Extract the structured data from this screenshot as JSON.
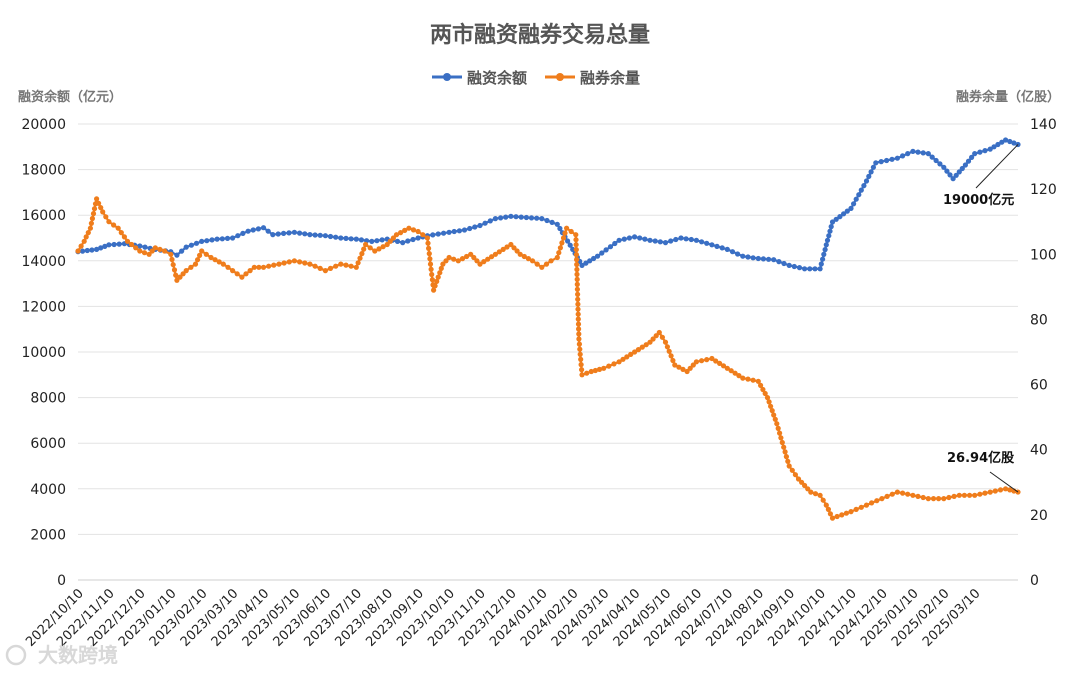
{
  "chart_data": {
    "type": "line",
    "title": "两市融资融券交易总量",
    "y_left_label": "融资余额（亿元）",
    "y_right_label": "融券余量（亿股）",
    "y_left_ticks": [
      "0",
      "2000",
      "4000",
      "6000",
      "8000",
      "10000",
      "12000",
      "14000",
      "16000",
      "18000",
      "20000"
    ],
    "y_right_ticks": [
      "0",
      "20",
      "40",
      "60",
      "80",
      "100",
      "120",
      "140"
    ],
    "ylim_left": [
      0,
      20000
    ],
    "ylim_right": [
      0,
      140
    ],
    "x_ticks": [
      "2022/10/10",
      "2022/11/10",
      "2022/12/10",
      "2023/01/10",
      "2023/02/10",
      "2023/03/10",
      "2023/04/10",
      "2023/05/10",
      "2023/06/10",
      "2023/07/10",
      "2023/08/10",
      "2023/09/10",
      "2023/10/10",
      "2023/11/10",
      "2023/12/10",
      "2024/01/10",
      "2024/02/10",
      "2024/03/10",
      "2024/04/10",
      "2024/05/10",
      "2024/06/10",
      "2024/07/10",
      "2024/08/10",
      "2024/09/10",
      "2024/10/10",
      "2024/11/10",
      "2024/12/10",
      "2025/01/10",
      "2025/02/10",
      "2025/03/10"
    ],
    "grid": true,
    "legend_position": "top",
    "series": [
      {
        "name": "融资余额",
        "color": "#3a6fc4",
        "axis": "left",
        "points": [
          [
            0,
            14400
          ],
          [
            0.3,
            14450
          ],
          [
            0.6,
            14500
          ],
          [
            1,
            14700
          ],
          [
            1.5,
            14750
          ],
          [
            2,
            14650
          ],
          [
            2.5,
            14500
          ],
          [
            3,
            14400
          ],
          [
            3.2,
            14250
          ],
          [
            3.5,
            14600
          ],
          [
            4,
            14850
          ],
          [
            4.5,
            14950
          ],
          [
            5,
            15000
          ],
          [
            5.5,
            15300
          ],
          [
            6,
            15450
          ],
          [
            6.3,
            15150
          ],
          [
            7,
            15250
          ],
          [
            7.5,
            15150
          ],
          [
            8,
            15100
          ],
          [
            8.5,
            15000
          ],
          [
            9,
            14950
          ],
          [
            9.5,
            14850
          ],
          [
            10,
            14950
          ],
          [
            10.5,
            14800
          ],
          [
            11,
            15000
          ],
          [
            11.3,
            15100
          ],
          [
            12,
            15250
          ],
          [
            12.5,
            15350
          ],
          [
            13,
            15550
          ],
          [
            13.5,
            15850
          ],
          [
            14,
            15950
          ],
          [
            14.5,
            15900
          ],
          [
            15,
            15850
          ],
          [
            15.5,
            15600
          ],
          [
            16,
            14500
          ],
          [
            16.3,
            13800
          ],
          [
            16.8,
            14200
          ],
          [
            17.5,
            14900
          ],
          [
            18,
            15050
          ],
          [
            18.5,
            14900
          ],
          [
            19,
            14800
          ],
          [
            19.5,
            15000
          ],
          [
            20,
            14900
          ],
          [
            20.5,
            14700
          ],
          [
            21,
            14500
          ],
          [
            21.5,
            14200
          ],
          [
            22,
            14100
          ],
          [
            22.5,
            14050
          ],
          [
            23,
            13800
          ],
          [
            23.5,
            13650
          ],
          [
            24,
            13650
          ],
          [
            24.2,
            14700
          ],
          [
            24.4,
            15700
          ],
          [
            25,
            16300
          ],
          [
            25.5,
            17500
          ],
          [
            25.8,
            18300
          ],
          [
            26.5,
            18500
          ],
          [
            27,
            18800
          ],
          [
            27.5,
            18700
          ],
          [
            28,
            18100
          ],
          [
            28.3,
            17600
          ],
          [
            28.7,
            18200
          ],
          [
            29,
            18700
          ],
          [
            29.5,
            18900
          ],
          [
            30,
            19300
          ],
          [
            30.4,
            19100
          ]
        ]
      },
      {
        "name": "融券余量",
        "color": "#ef7d1c",
        "axis": "right",
        "points": [
          [
            0,
            101
          ],
          [
            0.2,
            104
          ],
          [
            0.4,
            108
          ],
          [
            0.6,
            117
          ],
          [
            0.8,
            113
          ],
          [
            1,
            110
          ],
          [
            1.3,
            108
          ],
          [
            1.6,
            104
          ],
          [
            2,
            101
          ],
          [
            2.3,
            100
          ],
          [
            2.5,
            102
          ],
          [
            2.8,
            101
          ],
          [
            3,
            100
          ],
          [
            3.2,
            92
          ],
          [
            3.5,
            95
          ],
          [
            3.8,
            97
          ],
          [
            4,
            101
          ],
          [
            4.3,
            99
          ],
          [
            4.7,
            97
          ],
          [
            5,
            95
          ],
          [
            5.3,
            93
          ],
          [
            5.7,
            96
          ],
          [
            6,
            96
          ],
          [
            6.5,
            97
          ],
          [
            7,
            98
          ],
          [
            7.5,
            97
          ],
          [
            8,
            95
          ],
          [
            8.5,
            97
          ],
          [
            9,
            96
          ],
          [
            9.3,
            103
          ],
          [
            9.6,
            101
          ],
          [
            10,
            103
          ],
          [
            10.3,
            106
          ],
          [
            10.7,
            108
          ],
          [
            11,
            107
          ],
          [
            11.3,
            105
          ],
          [
            11.5,
            89
          ],
          [
            11.8,
            97
          ],
          [
            12,
            99
          ],
          [
            12.3,
            98
          ],
          [
            12.7,
            100
          ],
          [
            13,
            97
          ],
          [
            13.5,
            100
          ],
          [
            14,
            103
          ],
          [
            14.3,
            100
          ],
          [
            14.7,
            98
          ],
          [
            15,
            96
          ],
          [
            15.3,
            98
          ],
          [
            15.5,
            99
          ],
          [
            15.8,
            108
          ],
          [
            16.1,
            106
          ],
          [
            16.2,
            74
          ],
          [
            16.3,
            63
          ],
          [
            16.6,
            64
          ],
          [
            17,
            65
          ],
          [
            17.5,
            67
          ],
          [
            18,
            70
          ],
          [
            18.5,
            73
          ],
          [
            18.8,
            76
          ],
          [
            19,
            73
          ],
          [
            19.3,
            66
          ],
          [
            19.7,
            64
          ],
          [
            20,
            67
          ],
          [
            20.5,
            68
          ],
          [
            21,
            65
          ],
          [
            21.5,
            62
          ],
          [
            22,
            61
          ],
          [
            22.3,
            56
          ],
          [
            22.6,
            48
          ],
          [
            23,
            35
          ],
          [
            23.3,
            31
          ],
          [
            23.7,
            27
          ],
          [
            24,
            26
          ],
          [
            24.2,
            23
          ],
          [
            24.4,
            19
          ],
          [
            24.7,
            20
          ],
          [
            25,
            21
          ],
          [
            25.5,
            23
          ],
          [
            26,
            25
          ],
          [
            26.5,
            27
          ],
          [
            27,
            26
          ],
          [
            27.5,
            25
          ],
          [
            28,
            25
          ],
          [
            28.5,
            26
          ],
          [
            29,
            26
          ],
          [
            29.5,
            27
          ],
          [
            30,
            28
          ],
          [
            30.4,
            27
          ]
        ]
      }
    ],
    "annotations": [
      {
        "text": "19000亿元",
        "series": "融资余额"
      },
      {
        "text": "26.94亿股",
        "series": "融券余量"
      }
    ]
  },
  "watermark": "大数跨境"
}
